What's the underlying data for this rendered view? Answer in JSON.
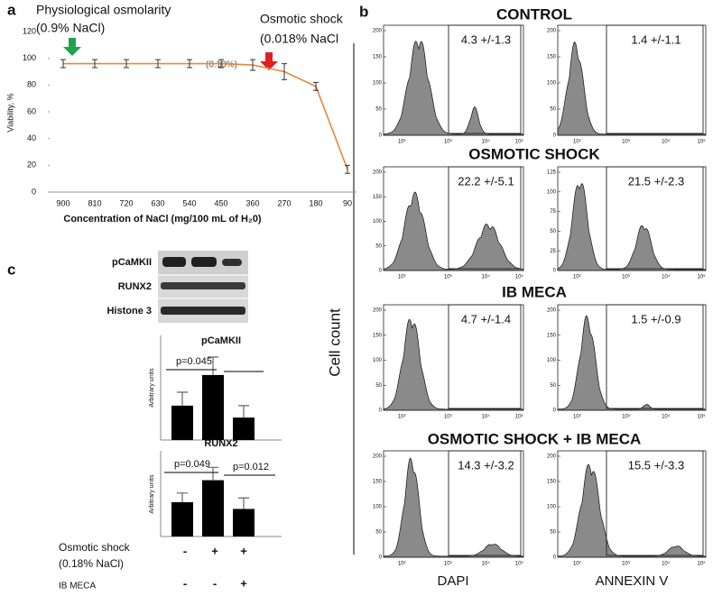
{
  "panel_labels": [
    "a",
    "b",
    "c"
  ],
  "chart_data": [
    {
      "type": "line",
      "y_label": "Viability, %",
      "x_label": "Concentration of NaCl (mg/100 mL of H₂0)",
      "categories": [
        "900",
        "810",
        "720",
        "630",
        "540",
        "450",
        "360",
        "270",
        "180",
        "90"
      ],
      "values": [
        96,
        96,
        96,
        96,
        96,
        96,
        95,
        90,
        79,
        17
      ],
      "errors": [
        3,
        3,
        3,
        3,
        3,
        3,
        4,
        6,
        3,
        3
      ],
      "color": "#e8873a",
      "ylim": [
        0,
        120
      ],
      "yticks": [
        0,
        20,
        40,
        60,
        80,
        100,
        120
      ],
      "annotations": {
        "physiological": "Physiological osmolarity",
        "physiological_sub": "(0.9% NaCl)",
        "shock": "Osmotic shock",
        "shock_sub": "(0.018% NaCl",
        "mid": "(0.18%)"
      }
    },
    {
      "type": "bar",
      "title": "pCaMKII",
      "y_label": "Arbitrary units",
      "values": [
        4.6,
        8.7,
        3.0
      ],
      "errors": [
        1.8,
        2.4,
        1.6
      ],
      "color": "#000000",
      "ylim": [
        0,
        14
      ],
      "p_values": [
        "p=0.045"
      ]
    },
    {
      "type": "bar",
      "title": "RUNX2",
      "y_label": "Arbitrary units",
      "values": [
        5.6,
        9.2,
        4.5
      ],
      "errors": [
        1.5,
        2.1,
        1.8
      ],
      "color": "#000000",
      "ylim": [
        0,
        14
      ],
      "p_values": [
        "p=0.049",
        "p=0.012"
      ]
    }
  ],
  "blot": {
    "labels": [
      "pCaMKII",
      "RUNX2",
      "Histone 3"
    ]
  },
  "conditions": [
    {
      "label": "Osmotic shock",
      "sub": "(0.18% NaCl)",
      "signs": [
        "-",
        "+",
        "+"
      ]
    },
    {
      "label": "IB MECA",
      "signs": [
        "-",
        "-",
        "+"
      ]
    }
  ],
  "flow": {
    "y_label": "Cell count",
    "x_labels": [
      "DAPI",
      "ANNEXIN V"
    ],
    "xticks": [
      "10²",
      "10³",
      "10⁴",
      "10⁵"
    ],
    "rows": [
      {
        "title": "CONTROL",
        "plots": [
          {
            "gate": "4.3 +/-1.3",
            "yticks": [
              0,
              50,
              100,
              150,
              200
            ]
          },
          {
            "gate": "1.4 +/-1.1",
            "yticks": [
              0,
              50,
              100,
              150,
              200
            ]
          }
        ]
      },
      {
        "title": "OSMOTIC SHOCK",
        "plots": [
          {
            "gate": "22.2 +/-5.1",
            "yticks": [
              0,
              50,
              100,
              150,
              200
            ]
          },
          {
            "gate": "21.5 +/-2.3",
            "yticks": [
              0,
              25,
              50,
              75,
              100,
              125
            ]
          }
        ]
      },
      {
        "title": "IB MECA",
        "plots": [
          {
            "gate": "4.7 +/-1.4",
            "yticks": [
              0,
              50,
              100,
              150,
              200
            ]
          },
          {
            "gate": "1.5 +/-0.9",
            "yticks": [
              0,
              50,
              100,
              150,
              200
            ]
          }
        ]
      },
      {
        "title": "OSMOTIC SHOCK + IB MECA",
        "plots": [
          {
            "gate": "14.3 +/-3.2",
            "yticks": [
              0,
              50,
              100,
              150,
              200
            ]
          },
          {
            "gate": "15.5 +/-3.3",
            "yticks": [
              0,
              50,
              100,
              150,
              200
            ]
          }
        ]
      }
    ]
  }
}
